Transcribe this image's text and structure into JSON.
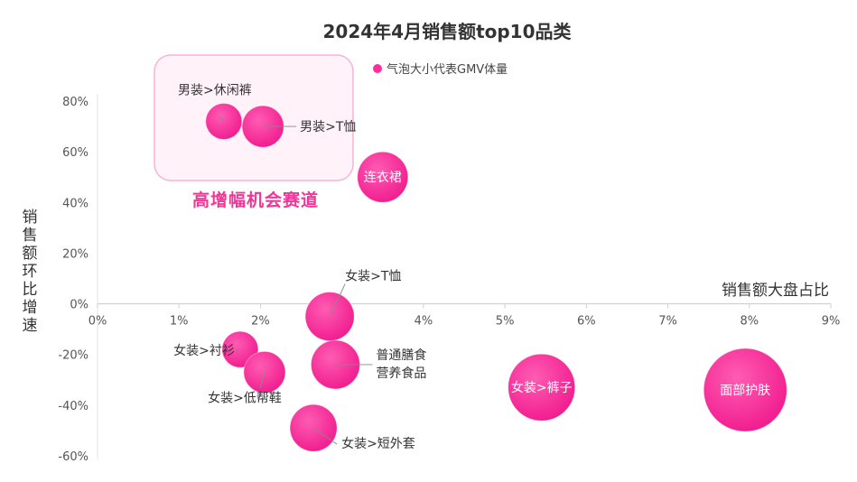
{
  "colors": {
    "bubble": "#ff2d9c",
    "bubble_dark": "#e8188a",
    "highlight_fill": "#fff2f8",
    "highlight_stroke": "#f7b3d5",
    "annotation": "#ee3796",
    "axis": "#cccccc"
  },
  "chart_data": {
    "type": "scatter",
    "title": "2024年4月销售额top10品类",
    "xlabel": "销售额大盘占比",
    "ylabel": "销售额环比增速",
    "xlim": [
      0,
      9
    ],
    "ylim": [
      -60,
      80
    ],
    "x_ticks": [
      "0%",
      "1%",
      "2%",
      "3%",
      "4%",
      "5%",
      "6%",
      "7%",
      "8%",
      "9%"
    ],
    "y_ticks": [
      "80%",
      "60%",
      "40%",
      "20%",
      "0%",
      "-20%",
      "-40%",
      "-60%"
    ],
    "legend": "气泡大小代表GMV体量",
    "legend_position": "top",
    "grid": false,
    "annotation": "高增幅机会赛道",
    "points": [
      {
        "name": "男装>休闲裤",
        "x": 1.55,
        "y": 72,
        "size": 20,
        "label_side": "top-left"
      },
      {
        "name": "男装>T恤",
        "x": 2.03,
        "y": 70,
        "size": 23,
        "label_side": "right"
      },
      {
        "name": "连衣裙",
        "x": 3.5,
        "y": 50,
        "size": 28,
        "label_side": "inside"
      },
      {
        "name": "女装>T恤",
        "x": 2.85,
        "y": -5,
        "size": 27,
        "label_side": "top-right"
      },
      {
        "name": "女装>衬衫",
        "x": 1.75,
        "y": -18,
        "size": 20,
        "label_side": "left"
      },
      {
        "name": "女装>低帮鞋",
        "x": 2.05,
        "y": -27,
        "size": 23,
        "label_side": "bottom-left"
      },
      {
        "name": "普通膳食\n营养食品",
        "x": 2.92,
        "y": -24,
        "size": 27,
        "label_side": "right"
      },
      {
        "name": "女装>短外套",
        "x": 2.65,
        "y": -49,
        "size": 26,
        "label_side": "bottom-right"
      },
      {
        "name": "女装>裤子",
        "x": 5.45,
        "y": -33,
        "size": 37,
        "label_side": "inside"
      },
      {
        "name": "面部护肤",
        "x": 7.95,
        "y": -34,
        "size": 46,
        "label_side": "inside"
      }
    ]
  }
}
